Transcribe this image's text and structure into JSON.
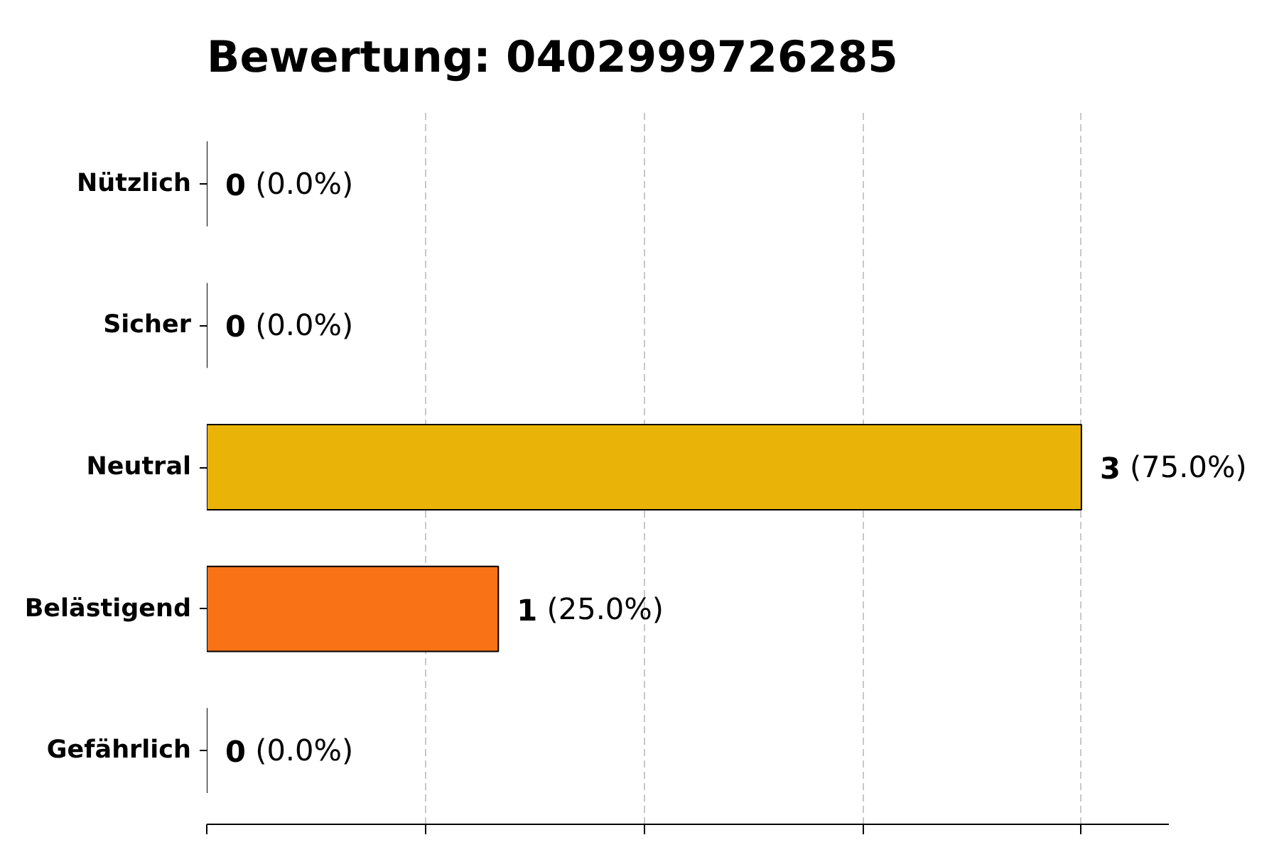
{
  "chart_data": {
    "type": "bar",
    "orientation": "horizontal",
    "title": "Bewertung: 0402999726285",
    "categories": [
      "Nützlich",
      "Sicher",
      "Neutral",
      "Belästigend",
      "Gefährlich"
    ],
    "values": [
      0,
      0,
      3,
      1,
      0
    ],
    "colors": [
      "#000000",
      "#000000",
      "#eab308",
      "#f97316",
      "#000000"
    ],
    "value_labels": [
      "0 (0.0%)",
      "0 (0.0%)",
      "3 (75.0%)",
      "1 (25.0%)",
      "0 (0.0%)"
    ],
    "xlim": [
      0,
      3.3
    ],
    "xticks": [
      {
        "value": 0,
        "label": null
      },
      {
        "value": 0.75,
        "label": null
      },
      {
        "value": 1.5,
        "label": null
      },
      {
        "value": 2.25,
        "label": null
      },
      {
        "value": 3,
        "label": null
      }
    ],
    "tick_labels": "y",
    "grid": "x"
  }
}
